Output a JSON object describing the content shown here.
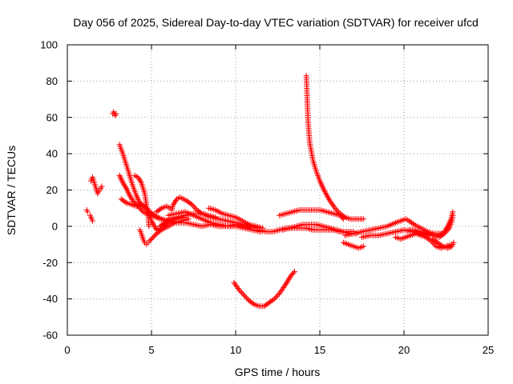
{
  "chart_data": {
    "type": "scatter",
    "title": "Day 056 of 2025, Sidereal Day-to-day VTEC variation (SDTVAR) for receiver ufcd",
    "xlabel": "GPS time / hours",
    "ylabel": "SDTVAR / TECUs",
    "xlim": [
      0,
      25
    ],
    "ylim": [
      -60,
      100
    ],
    "x_ticks": [
      0,
      5,
      10,
      15,
      20,
      25
    ],
    "y_ticks": [
      -60,
      -40,
      -20,
      0,
      20,
      40,
      60,
      80,
      100
    ],
    "grid": true,
    "marker": "+",
    "marker_color": "#ff0000",
    "series_segments": [
      {
        "name": "early-isolated-1",
        "points": [
          [
            1.15,
            9
          ],
          [
            1.2,
            8
          ]
        ]
      },
      {
        "name": "early-cluster-1",
        "points": [
          [
            1.35,
            6
          ],
          [
            1.4,
            5
          ],
          [
            1.45,
            4
          ],
          [
            1.5,
            3
          ]
        ]
      },
      {
        "name": "early-cluster-2",
        "points": [
          [
            1.4,
            25
          ],
          [
            1.5,
            27
          ],
          [
            1.6,
            24
          ],
          [
            1.7,
            21
          ],
          [
            1.8,
            18
          ],
          [
            1.9,
            20
          ],
          [
            2.0,
            21
          ],
          [
            2.05,
            22
          ]
        ]
      },
      {
        "name": "early-cluster-3",
        "points": [
          [
            2.7,
            62
          ],
          [
            2.75,
            63
          ],
          [
            2.85,
            61
          ],
          [
            2.9,
            62
          ]
        ]
      },
      {
        "name": "arc-a",
        "points": [
          [
            3.1,
            45
          ],
          [
            3.3,
            40
          ],
          [
            3.5,
            34
          ],
          [
            3.7,
            28
          ],
          [
            3.9,
            22
          ],
          [
            4.1,
            17
          ],
          [
            4.3,
            13
          ],
          [
            4.5,
            11
          ],
          [
            4.7,
            10
          ],
          [
            4.9,
            8
          ],
          [
            5.2,
            6
          ],
          [
            5.6,
            4
          ],
          [
            6.0,
            3
          ],
          [
            6.5,
            2
          ],
          [
            7.0,
            2
          ]
        ]
      },
      {
        "name": "arc-b",
        "points": [
          [
            3.1,
            28
          ],
          [
            3.3,
            24
          ],
          [
            3.5,
            21
          ],
          [
            3.7,
            17
          ],
          [
            3.9,
            14
          ],
          [
            4.1,
            12
          ],
          [
            4.3,
            10
          ],
          [
            4.5,
            8
          ],
          [
            4.7,
            7
          ],
          [
            5.0,
            6
          ],
          [
            5.5,
            4
          ],
          [
            6.0,
            3
          ]
        ]
      },
      {
        "name": "arc-c",
        "points": [
          [
            3.2,
            15
          ],
          [
            3.5,
            13
          ],
          [
            3.8,
            12
          ],
          [
            4.1,
            11
          ],
          [
            4.4,
            12
          ],
          [
            4.6,
            11
          ],
          [
            4.8,
            8
          ],
          [
            5.0,
            3
          ],
          [
            5.3,
            -2
          ],
          [
            5.6,
            -1
          ],
          [
            6.0,
            2
          ],
          [
            6.5,
            4
          ],
          [
            7.0,
            5
          ]
        ]
      },
      {
        "name": "arc-d",
        "points": [
          [
            4.0,
            28
          ],
          [
            4.2,
            27
          ],
          [
            4.4,
            24
          ],
          [
            4.6,
            18
          ],
          [
            4.7,
            12
          ],
          [
            4.8,
            6
          ],
          [
            4.85,
            0
          ]
        ]
      },
      {
        "name": "arc-e",
        "points": [
          [
            4.3,
            -2
          ],
          [
            4.4,
            -4
          ],
          [
            4.5,
            -7
          ],
          [
            4.6,
            -9
          ],
          [
            4.7,
            -10
          ],
          [
            4.8,
            -9
          ],
          [
            4.9,
            -8
          ],
          [
            5.1,
            -6
          ],
          [
            5.3,
            -4
          ],
          [
            5.6,
            -2
          ],
          [
            6.0,
            0
          ],
          [
            6.4,
            2
          ],
          [
            6.8,
            3
          ],
          [
            7.2,
            4
          ]
        ]
      },
      {
        "name": "arc-f",
        "points": [
          [
            5.3,
            8
          ],
          [
            5.6,
            10
          ],
          [
            5.9,
            11
          ],
          [
            6.1,
            10
          ],
          [
            6.2,
            9
          ],
          [
            6.3,
            12
          ],
          [
            6.5,
            15
          ],
          [
            6.7,
            16
          ],
          [
            6.9,
            15
          ],
          [
            7.1,
            14
          ],
          [
            7.4,
            12
          ],
          [
            7.7,
            9
          ],
          [
            8.0,
            7
          ],
          [
            8.4,
            6
          ],
          [
            8.8,
            5
          ]
        ]
      },
      {
        "name": "arc-g",
        "points": [
          [
            5.5,
            0
          ],
          [
            5.8,
            2
          ],
          [
            6.1,
            4
          ],
          [
            6.5,
            5
          ],
          [
            7.0,
            6
          ],
          [
            7.5,
            7
          ],
          [
            8.0,
            7
          ],
          [
            8.5,
            5
          ],
          [
            9.0,
            4
          ],
          [
            9.5,
            3
          ],
          [
            10.0,
            2
          ],
          [
            10.5,
            1
          ],
          [
            11.0,
            0
          ],
          [
            11.4,
            -1
          ]
        ]
      },
      {
        "name": "arc-h",
        "points": [
          [
            6.0,
            6
          ],
          [
            6.5,
            7
          ],
          [
            7.0,
            8
          ],
          [
            7.5,
            6
          ],
          [
            8.0,
            4
          ],
          [
            8.5,
            2
          ],
          [
            9.0,
            1
          ],
          [
            9.5,
            0
          ],
          [
            10.0,
            0
          ],
          [
            10.5,
            -1
          ],
          [
            11.0,
            -2
          ],
          [
            11.5,
            -3
          ]
        ]
      },
      {
        "name": "arc-i",
        "points": [
          [
            8.4,
            10
          ],
          [
            8.8,
            9
          ],
          [
            9.2,
            7
          ],
          [
            9.6,
            6
          ],
          [
            10.0,
            5
          ],
          [
            10.4,
            3
          ],
          [
            10.8,
            1
          ],
          [
            11.2,
            0
          ],
          [
            11.6,
            -1
          ]
        ]
      },
      {
        "name": "arc-j",
        "points": [
          [
            7.0,
            2
          ],
          [
            7.5,
            1
          ],
          [
            8.0,
            0
          ],
          [
            8.5,
            1
          ],
          [
            9.0,
            0
          ],
          [
            9.5,
            0
          ],
          [
            10.0,
            1
          ],
          [
            10.5,
            0
          ],
          [
            11.0,
            -1
          ]
        ]
      },
      {
        "name": "arc-dip",
        "points": [
          [
            9.9,
            -31
          ],
          [
            10.2,
            -35
          ],
          [
            10.5,
            -38
          ],
          [
            10.8,
            -41
          ],
          [
            11.1,
            -43
          ],
          [
            11.4,
            -44
          ],
          [
            11.7,
            -44
          ],
          [
            12.0,
            -42
          ],
          [
            12.3,
            -40
          ],
          [
            12.6,
            -37
          ],
          [
            12.9,
            -33
          ],
          [
            13.1,
            -30
          ],
          [
            13.3,
            -27
          ],
          [
            13.5,
            -25
          ]
        ]
      },
      {
        "name": "arc-mid-1",
        "points": [
          [
            11.4,
            -2
          ],
          [
            11.8,
            -3
          ],
          [
            12.2,
            -3
          ],
          [
            12.6,
            -2
          ],
          [
            13.0,
            -1
          ],
          [
            13.4,
            -1
          ],
          [
            13.8,
            -1
          ],
          [
            14.2,
            -1
          ],
          [
            14.6,
            -2
          ],
          [
            15.0,
            -2
          ],
          [
            15.4,
            -2
          ],
          [
            15.8,
            -2
          ],
          [
            16.2,
            -3
          ],
          [
            16.6,
            -3
          ],
          [
            17.0,
            -3
          ]
        ]
      },
      {
        "name": "arc-mid-2",
        "points": [
          [
            12.6,
            6
          ],
          [
            13.0,
            7
          ],
          [
            13.4,
            8
          ],
          [
            13.8,
            9
          ],
          [
            14.2,
            9
          ],
          [
            14.6,
            9
          ],
          [
            15.0,
            9
          ],
          [
            15.4,
            8
          ],
          [
            15.8,
            7
          ],
          [
            16.2,
            6
          ],
          [
            16.4,
            4
          ]
        ]
      },
      {
        "name": "arc-mid-3",
        "points": [
          [
            12.8,
            -2
          ],
          [
            13.2,
            -1
          ],
          [
            13.6,
            0
          ],
          [
            14.0,
            1
          ],
          [
            14.4,
            1
          ],
          [
            14.8,
            1
          ],
          [
            15.2,
            0
          ],
          [
            15.6,
            -1
          ],
          [
            16.0,
            -2
          ],
          [
            16.4,
            -3
          ],
          [
            16.8,
            -4
          ],
          [
            17.2,
            -4
          ]
        ]
      },
      {
        "name": "arc-spike",
        "points": [
          [
            14.2,
            83
          ],
          [
            14.22,
            78
          ],
          [
            14.25,
            70
          ],
          [
            14.28,
            63
          ],
          [
            14.3,
            58
          ],
          [
            14.35,
            52
          ],
          [
            14.4,
            46
          ],
          [
            14.5,
            41
          ],
          [
            14.6,
            36
          ],
          [
            14.8,
            30
          ],
          [
            15.0,
            25
          ],
          [
            15.3,
            19
          ],
          [
            15.6,
            14
          ],
          [
            15.9,
            10
          ],
          [
            16.2,
            7
          ],
          [
            16.5,
            5
          ],
          [
            16.8,
            4
          ],
          [
            17.2,
            4
          ],
          [
            17.6,
            4
          ]
        ]
      },
      {
        "name": "arc-late-1",
        "points": [
          [
            16.4,
            -9
          ],
          [
            16.7,
            -10
          ],
          [
            17.0,
            -11
          ],
          [
            17.3,
            -12
          ],
          [
            17.6,
            -11
          ]
        ]
      },
      {
        "name": "arc-late-2",
        "points": [
          [
            16.5,
            -5
          ],
          [
            17.0,
            -4
          ],
          [
            17.5,
            -3
          ],
          [
            18.0,
            -2
          ],
          [
            18.5,
            -1
          ],
          [
            19.0,
            0
          ],
          [
            19.5,
            2
          ],
          [
            19.8,
            3
          ],
          [
            20.1,
            4
          ],
          [
            20.3,
            3
          ],
          [
            20.6,
            1
          ],
          [
            21.0,
            -1
          ],
          [
            21.4,
            -3
          ],
          [
            21.8,
            -4
          ],
          [
            22.2,
            -4
          ]
        ]
      },
      {
        "name": "arc-late-3",
        "points": [
          [
            17.5,
            -6
          ],
          [
            18.0,
            -5
          ],
          [
            18.5,
            -5
          ],
          [
            19.0,
            -4
          ],
          [
            19.5,
            -3
          ],
          [
            20.0,
            -2
          ],
          [
            20.5,
            -3
          ],
          [
            21.0,
            -4
          ],
          [
            21.5,
            -5
          ],
          [
            22.0,
            -5
          ],
          [
            22.4,
            -3
          ],
          [
            22.6,
            0
          ],
          [
            22.8,
            4
          ],
          [
            22.9,
            8
          ]
        ]
      },
      {
        "name": "arc-late-4",
        "points": [
          [
            19.5,
            -6
          ],
          [
            19.8,
            -7
          ],
          [
            20.1,
            -6
          ],
          [
            20.4,
            -5
          ],
          [
            20.7,
            -4
          ],
          [
            21.0,
            -5
          ],
          [
            21.3,
            -6
          ],
          [
            21.6,
            -8
          ],
          [
            21.9,
            -11
          ],
          [
            22.2,
            -12
          ],
          [
            22.5,
            -11
          ],
          [
            22.8,
            -10
          ]
        ]
      },
      {
        "name": "arc-late-5",
        "points": [
          [
            20.3,
            -2
          ],
          [
            20.6,
            -2
          ],
          [
            21.0,
            -3
          ],
          [
            21.4,
            -4
          ],
          [
            21.8,
            -5
          ],
          [
            22.1,
            -6
          ],
          [
            22.4,
            -4
          ],
          [
            22.7,
            -1
          ],
          [
            22.85,
            3
          ],
          [
            22.9,
            6
          ]
        ]
      },
      {
        "name": "arc-late-6",
        "points": [
          [
            21.7,
            -7
          ],
          [
            22.0,
            -9
          ],
          [
            22.3,
            -11
          ],
          [
            22.6,
            -12
          ],
          [
            22.85,
            -11
          ],
          [
            22.95,
            -9
          ]
        ]
      }
    ]
  }
}
